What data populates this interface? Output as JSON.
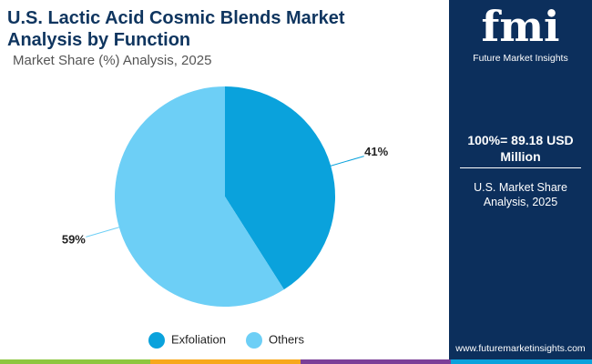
{
  "chart_data": {
    "type": "pie",
    "title": "U.S. Lactic Acid Cosmic Blends Market Analysis by Function",
    "subtitle": "Market Share (%) Analysis, 2025",
    "categories": [
      "Exfoliation",
      "Others"
    ],
    "values": [
      41,
      59
    ],
    "value_labels": [
      "41%",
      "59%"
    ],
    "colors": [
      "#0aa2dc",
      "#6dcff6"
    ]
  },
  "sidebar": {
    "logo": "fmi",
    "brand": "Future Market Insights",
    "total": "100%=  89.18 USD Million",
    "caption": "U.S. Market Share Analysis, 2025",
    "website": "www.futuremarketinsights.com"
  }
}
